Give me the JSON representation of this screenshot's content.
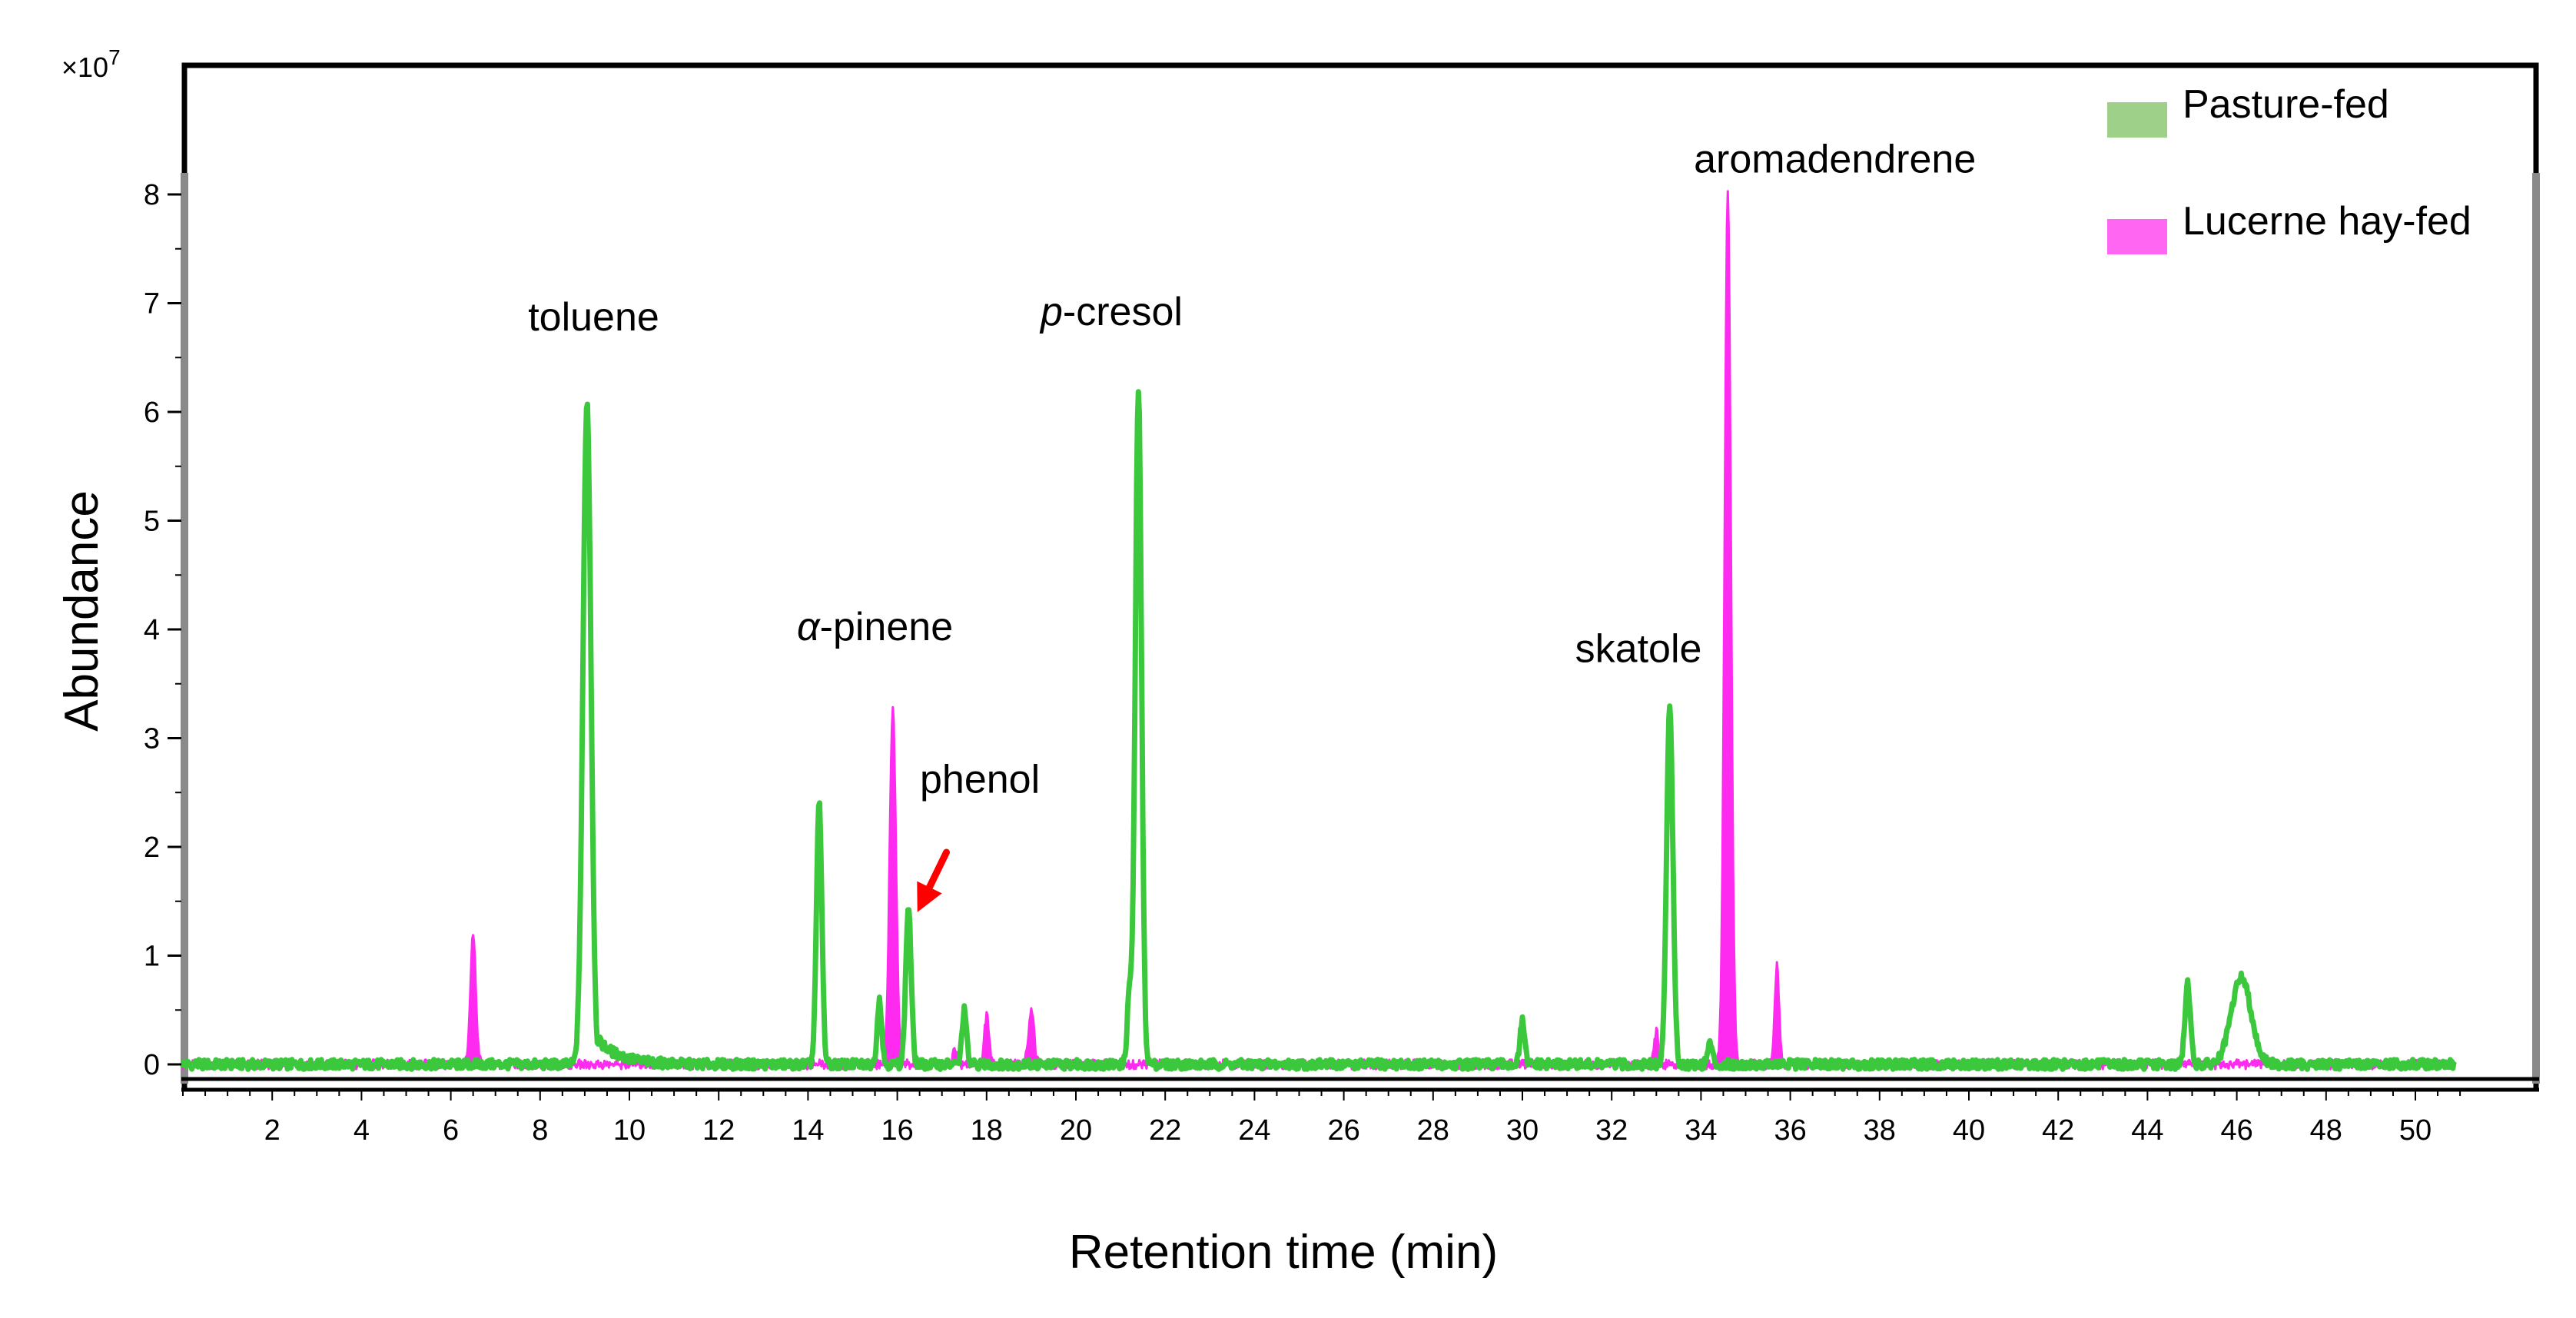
{
  "chart_data": {
    "type": "line",
    "title": "",
    "xlabel": "Retention time (min)",
    "ylabel": "Abundance",
    "y_multiplier": "×10",
    "y_exponent": "7",
    "xlim": [
      0,
      51
    ],
    "ylim": [
      0,
      8.5
    ],
    "x_ticks": [
      2,
      4,
      6,
      8,
      10,
      12,
      14,
      16,
      18,
      20,
      22,
      24,
      26,
      28,
      30,
      32,
      34,
      36,
      38,
      40,
      42,
      44,
      46,
      48,
      50
    ],
    "y_ticks": [
      0,
      1,
      2,
      3,
      4,
      5,
      6,
      7,
      8
    ],
    "legend_position": "top-right",
    "series": [
      {
        "name": "Pasture-fed",
        "color": "#3cc83c",
        "legend_color": "#9fd08a",
        "peaks": [
          {
            "x": 9.05,
            "y": 6.1,
            "w": 0.09,
            "tail": 0.5
          },
          {
            "x": 14.25,
            "y": 2.4,
            "w": 0.06
          },
          {
            "x": 15.6,
            "y": 0.6,
            "w": 0.05
          },
          {
            "x": 16.25,
            "y": 1.45,
            "w": 0.06
          },
          {
            "x": 17.5,
            "y": 0.5,
            "w": 0.05
          },
          {
            "x": 21.2,
            "y": 0.65,
            "w": 0.05
          },
          {
            "x": 21.4,
            "y": 6.2,
            "w": 0.07
          },
          {
            "x": 30.0,
            "y": 0.4,
            "w": 0.05
          },
          {
            "x": 33.3,
            "y": 3.3,
            "w": 0.07
          },
          {
            "x": 34.2,
            "y": 0.2,
            "w": 0.05
          },
          {
            "x": 44.9,
            "y": 0.75,
            "w": 0.06
          },
          {
            "x": 46.1,
            "y": 0.8,
            "w": 0.22
          }
        ]
      },
      {
        "name": "Lucerne hay-fed",
        "color": "#ff2af0",
        "legend_color": "#ff66f2",
        "peaks": [
          {
            "x": 6.5,
            "y": 1.2,
            "w": 0.06
          },
          {
            "x": 15.9,
            "y": 3.25,
            "w": 0.07
          },
          {
            "x": 17.3,
            "y": 0.15,
            "w": 0.05
          },
          {
            "x": 18.0,
            "y": 0.45,
            "w": 0.05
          },
          {
            "x": 19.0,
            "y": 0.5,
            "w": 0.06
          },
          {
            "x": 33.0,
            "y": 0.3,
            "w": 0.05
          },
          {
            "x": 34.6,
            "y": 8.0,
            "w": 0.07
          },
          {
            "x": 35.7,
            "y": 0.9,
            "w": 0.05
          }
        ]
      }
    ],
    "annotations": [
      {
        "text": "toluene",
        "x": 9.2,
        "y": 6.75
      },
      {
        "text": "α-pinene",
        "x": 15.5,
        "y": 3.9
      },
      {
        "text": "phenol",
        "x": 17.85,
        "y": 2.5
      },
      {
        "text": "p-cresol",
        "x": 20.8,
        "y": 6.8
      },
      {
        "text": "skatole",
        "x": 32.6,
        "y": 3.7
      },
      {
        "text": "aromadendrene",
        "x": 37.0,
        "y": 8.2
      }
    ],
    "arrow": {
      "from_x": 17.1,
      "from_y": 1.95,
      "to_x": 16.45,
      "to_y": 1.4,
      "color": "#ff0000"
    }
  }
}
